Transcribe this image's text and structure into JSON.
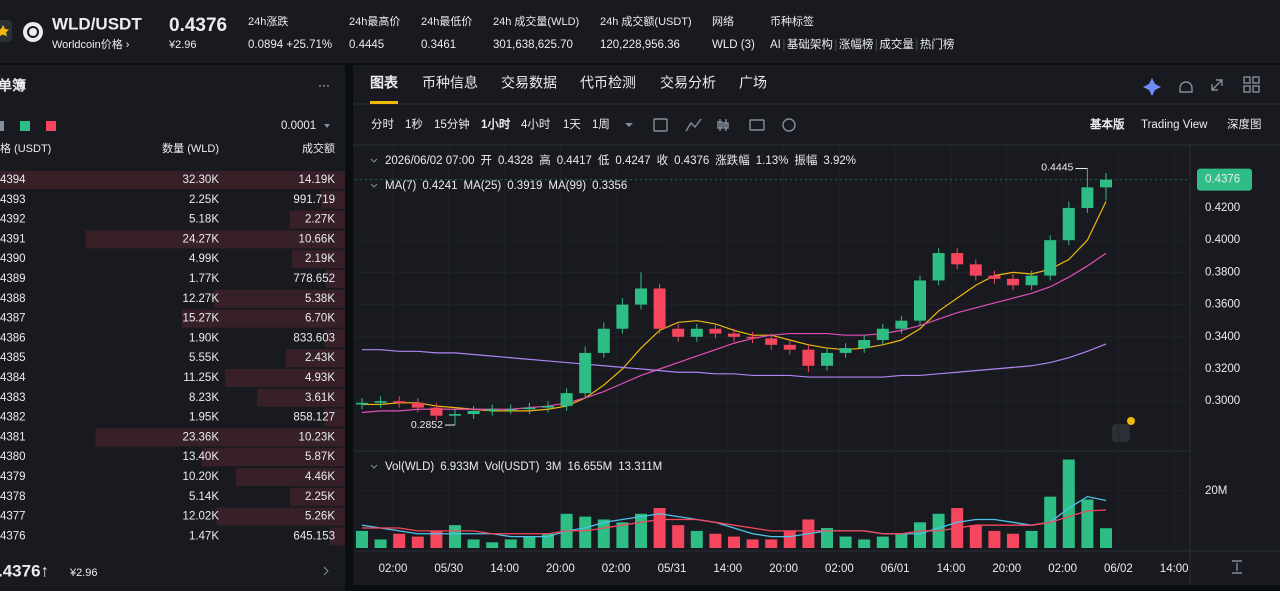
{
  "header": {
    "pair": "WLD/USDT",
    "subtitle": "Worldcoin价格 ›",
    "price": "0.4376",
    "price_cny": "¥2.96",
    "stats": [
      {
        "label": "24h涨跌",
        "value": "0.0894 +25.71%"
      },
      {
        "label": "24h最高价",
        "value": "0.4445"
      },
      {
        "label": "24h最低价",
        "value": "0.3461"
      },
      {
        "label": "24h 成交量(WLD)",
        "value": "301,638,625.70"
      },
      {
        "label": "24h 成交额(USDT)",
        "value": "120,228,956.36"
      },
      {
        "label": "网络",
        "value": "WLD (3)"
      }
    ],
    "tags_label": "币种标签",
    "tags": [
      "AI",
      "基础架构",
      "涨幅榜",
      "成交量",
      "热门榜"
    ]
  },
  "order_book": {
    "title": "单簿",
    "more": "···",
    "precision": "0.0001",
    "columns": [
      "格 (USDT)",
      "数量 (WLD)",
      "成交额"
    ],
    "rows": [
      [
        "4394",
        "32.30K",
        "14.19K"
      ],
      [
        "4393",
        "2.25K",
        "991.719"
      ],
      [
        "4392",
        "5.18K",
        "2.27K"
      ],
      [
        "4391",
        "24.27K",
        "10.66K"
      ],
      [
        "4390",
        "4.99K",
        "2.19K"
      ],
      [
        "4389",
        "1.77K",
        "778.652"
      ],
      [
        "4388",
        "12.27K",
        "5.38K"
      ],
      [
        "4387",
        "15.27K",
        "6.70K"
      ],
      [
        "4386",
        "1.90K",
        "833.603"
      ],
      [
        "4385",
        "5.55K",
        "2.43K"
      ],
      [
        "4384",
        "11.25K",
        "4.93K"
      ],
      [
        "4383",
        "8.23K",
        "3.61K"
      ],
      [
        "4382",
        "1.95K",
        "858.127"
      ],
      [
        "4381",
        "23.36K",
        "10.23K"
      ],
      [
        "4380",
        "13.40K",
        "5.87K"
      ],
      [
        "4379",
        "10.20K",
        "4.46K"
      ],
      [
        "4378",
        "5.14K",
        "2.25K"
      ],
      [
        "4377",
        "12.02K",
        "5.26K"
      ],
      [
        "4376",
        "1.47K",
        "645.153"
      ]
    ],
    "last_price": ".4376↑",
    "last_cny": "¥2.96"
  },
  "chart_panel": {
    "tabs": [
      "图表",
      "币种信息",
      "交易数据",
      "代币检测",
      "交易分析",
      "广场"
    ],
    "intervals": [
      "分时",
      "1秒",
      "15分钟",
      "1小时",
      "4小时",
      "1天",
      "1周"
    ],
    "views": [
      "基本版",
      "Trading View",
      "深度图"
    ],
    "info": {
      "date": "2026/06/02 07:00",
      "open": "开",
      "high": "高",
      "low": "低",
      "close": "收",
      "change_label": "涨跌幅",
      "change": "1.13%",
      "amp_label": "振幅",
      "amp": "3.92%"
    },
    "vol_legend": [
      "Vol(WLD)",
      "6.933M",
      "Vol(USDT)",
      "3M",
      "16.655M",
      "13.311M"
    ]
  },
  "chart": {
    "type": "candlestick",
    "x_labels": [
      "02:00",
      "05/30",
      "14:00",
      "20:00",
      "02:00",
      "05/31",
      "14:00",
      "20:00",
      "02:00",
      "06/01",
      "14:00",
      "20:00",
      "02:00",
      "06/02",
      "14:00"
    ],
    "open": [
      0.298,
      0.299,
      0.3,
      0.299,
      0.296,
      0.291,
      0.292,
      0.294,
      0.295,
      0.295,
      0.296,
      0.297,
      0.305,
      0.33,
      0.345,
      0.36,
      0.37,
      0.345,
      0.34,
      0.345,
      0.342,
      0.34,
      0.339,
      0.335,
      0.332,
      0.322,
      0.33,
      0.333,
      0.338,
      0.345,
      0.35,
      0.375,
      0.392,
      0.385,
      0.378,
      0.376,
      0.372,
      0.378,
      0.4,
      0.42,
      0.4328
    ],
    "high": [
      0.302,
      0.303,
      0.303,
      0.302,
      0.299,
      0.295,
      0.297,
      0.298,
      0.298,
      0.299,
      0.3,
      0.308,
      0.334,
      0.349,
      0.364,
      0.38,
      0.373,
      0.348,
      0.348,
      0.348,
      0.345,
      0.343,
      0.342,
      0.338,
      0.335,
      0.333,
      0.336,
      0.341,
      0.348,
      0.353,
      0.378,
      0.395,
      0.395,
      0.388,
      0.381,
      0.379,
      0.381,
      0.403,
      0.424,
      0.4445,
      0.4417
    ],
    "low": [
      0.295,
      0.296,
      0.296,
      0.293,
      0.288,
      0.2852,
      0.289,
      0.291,
      0.292,
      0.292,
      0.293,
      0.294,
      0.302,
      0.327,
      0.342,
      0.357,
      0.342,
      0.337,
      0.337,
      0.339,
      0.337,
      0.336,
      0.332,
      0.329,
      0.318,
      0.319,
      0.327,
      0.33,
      0.335,
      0.342,
      0.347,
      0.372,
      0.382,
      0.375,
      0.373,
      0.369,
      0.369,
      0.375,
      0.397,
      0.417,
      0.4247
    ],
    "close": [
      0.299,
      0.3,
      0.299,
      0.296,
      0.291,
      0.292,
      0.294,
      0.295,
      0.295,
      0.296,
      0.297,
      0.305,
      0.33,
      0.345,
      0.36,
      0.37,
      0.345,
      0.34,
      0.345,
      0.342,
      0.34,
      0.339,
      0.335,
      0.332,
      0.322,
      0.33,
      0.333,
      0.338,
      0.345,
      0.35,
      0.375,
      0.392,
      0.385,
      0.378,
      0.376,
      0.372,
      0.378,
      0.4,
      0.42,
      0.4328,
      0.4376
    ],
    "up_color": "#2ebd85",
    "down_color": "#f6465d",
    "ma": [
      {
        "name": "MA(7)",
        "color": "#f0b90b",
        "values": [
          0.298,
          0.298,
          0.299,
          0.299,
          0.297,
          0.296,
          0.295,
          0.294,
          0.294,
          0.294,
          0.295,
          0.297,
          0.302,
          0.31,
          0.32,
          0.333,
          0.344,
          0.349,
          0.35,
          0.348,
          0.344,
          0.341,
          0.341,
          0.338,
          0.335,
          0.333,
          0.332,
          0.333,
          0.335,
          0.338,
          0.345,
          0.356,
          0.364,
          0.372,
          0.378,
          0.38,
          0.379,
          0.382,
          0.388,
          0.4,
          0.4241
        ]
      },
      {
        "name": "MA(25)",
        "color": "#e44fb5",
        "values": [
          0.293,
          0.294,
          0.294,
          0.295,
          0.295,
          0.295,
          0.295,
          0.295,
          0.295,
          0.296,
          0.297,
          0.299,
          0.302,
          0.306,
          0.311,
          0.316,
          0.32,
          0.324,
          0.328,
          0.332,
          0.336,
          0.339,
          0.341,
          0.342,
          0.342,
          0.342,
          0.341,
          0.341,
          0.342,
          0.344,
          0.347,
          0.351,
          0.355,
          0.358,
          0.361,
          0.364,
          0.367,
          0.371,
          0.377,
          0.384,
          0.3919
        ]
      },
      {
        "name": "MA(99)",
        "color": "#b084f5",
        "values": [
          0.332,
          0.332,
          0.331,
          0.331,
          0.33,
          0.33,
          0.329,
          0.328,
          0.327,
          0.326,
          0.325,
          0.324,
          0.323,
          0.322,
          0.321,
          0.32,
          0.319,
          0.318,
          0.318,
          0.317,
          0.317,
          0.316,
          0.316,
          0.316,
          0.315,
          0.315,
          0.315,
          0.315,
          0.315,
          0.316,
          0.316,
          0.317,
          0.318,
          0.319,
          0.32,
          0.321,
          0.322,
          0.324,
          0.327,
          0.331,
          0.3356
        ]
      }
    ],
    "ylim": [
      0.2697,
      0.456
    ],
    "yticks": [
      {
        "value": 0.42,
        "label": "0.4200"
      },
      {
        "value": 0.4,
        "label": "0.4000"
      },
      {
        "value": 0.38,
        "label": "0.3800"
      },
      {
        "value": 0.36,
        "label": "0.3600"
      },
      {
        "value": 0.34,
        "label": "0.3400"
      },
      {
        "value": 0.32,
        "label": "0.3200"
      },
      {
        "value": 0.3,
        "label": "0.3000"
      }
    ],
    "grid": true,
    "volume": {
      "values": [
        6000000,
        3000000,
        5000000,
        4000000,
        6000000,
        8000000,
        3000000,
        2000000,
        3000000,
        4000000,
        5000000,
        12000000,
        11000000,
        10000000,
        9000000,
        12000000,
        14000000,
        8000000,
        6000000,
        5000000,
        4000000,
        3000000,
        3000000,
        6000000,
        10000000,
        7000000,
        4000000,
        3000000,
        4000000,
        5000000,
        9000000,
        12000000,
        14000000,
        8000000,
        6000000,
        5000000,
        6000000,
        18000000,
        31000000,
        17000000,
        6933000
      ],
      "ylim": [
        0,
        33300000
      ],
      "yticks": [
        {
          "value": 20000000,
          "label": "20M"
        }
      ],
      "ma": [
        {
          "color": "#4fc3e8",
          "values": [
            8000000,
            7000000,
            6000000,
            5000000,
            5000000,
            5000000,
            5000000,
            5000000,
            4000000,
            4000000,
            4000000,
            6000000,
            7000000,
            9000000,
            10000000,
            11000000,
            12000000,
            11000000,
            10000000,
            9000000,
            7000000,
            5000000,
            4000000,
            4000000,
            5000000,
            6000000,
            6000000,
            6000000,
            5000000,
            5000000,
            5000000,
            7000000,
            9000000,
            10000000,
            10000000,
            9000000,
            8000000,
            9000000,
            14000000,
            18000000,
            16655000
          ]
        },
        {
          "color": "#f6465d",
          "values": [
            7000000,
            7000000,
            7000000,
            6000000,
            6000000,
            6000000,
            6000000,
            5000000,
            5000000,
            5000000,
            5000000,
            6000000,
            6000000,
            7000000,
            8000000,
            9000000,
            10000000,
            10000000,
            10000000,
            9000000,
            8000000,
            7000000,
            6000000,
            6000000,
            6000000,
            6000000,
            6000000,
            6000000,
            5000000,
            5000000,
            6000000,
            6000000,
            7000000,
            8000000,
            8000000,
            8000000,
            8000000,
            9000000,
            11000000,
            13000000,
            13311000
          ]
        }
      ]
    }
  }
}
